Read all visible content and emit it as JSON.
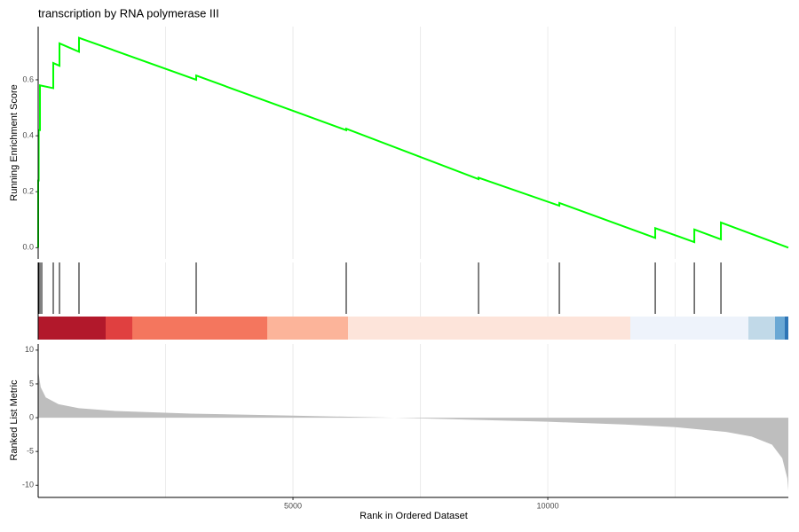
{
  "chart_data": [
    {
      "type": "line",
      "title": "transcription by RNA polymerase III",
      "ylabel": "Running Enrichment Score",
      "x": [
        0,
        0,
        10,
        10,
        35,
        35,
        296,
        296,
        418,
        418,
        801,
        801,
        3101,
        3101,
        6045,
        6045,
        8641,
        8641,
        10226,
        10226,
        12108,
        12108,
        12875,
        12875,
        13397,
        13397,
        14720
      ],
      "values": [
        0,
        0.24,
        0.24,
        0.42,
        0.42,
        0.58,
        0.57,
        0.66,
        0.65,
        0.73,
        0.7,
        0.75,
        0.6,
        0.615,
        0.42,
        0.425,
        0.245,
        0.25,
        0.15,
        0.16,
        0.035,
        0.07,
        0.02,
        0.065,
        0.03,
        0.09,
        0
      ],
      "color": "#00ff00",
      "xlim": [
        0,
        14720
      ],
      "ylim": [
        -0.04,
        0.79
      ],
      "yticks": [
        {
          "value": 0,
          "label": "0.0"
        },
        {
          "value": 0.2,
          "label": "0.2"
        },
        {
          "value": 0.4,
          "label": "0.4"
        },
        {
          "value": 0.6,
          "label": "0.6"
        }
      ],
      "xgrid": [
        2500,
        5000,
        7500,
        10000,
        12500
      ]
    },
    {
      "type": "rug",
      "x": [
        0,
        10,
        35,
        70,
        296,
        418,
        801,
        3101,
        6045,
        8641,
        10226,
        12108,
        12875,
        13397
      ],
      "color": "#000000",
      "xlim": [
        0,
        14720
      ],
      "xgrid": [
        2500,
        5000,
        7500,
        10000,
        12500
      ]
    },
    {
      "type": "area",
      "ylabel": "Ranked List Metric",
      "xlabel": "Rank in Ordered Dataset",
      "x": [
        0,
        50,
        150,
        400,
        800,
        1500,
        3000,
        5000,
        7000,
        8500,
        10000,
        11500,
        12500,
        13500,
        14000,
        14400,
        14600,
        14700,
        14720
      ],
      "values": [
        7,
        4.5,
        3,
        2,
        1.4,
        1.0,
        0.6,
        0.3,
        0,
        -0.3,
        -0.6,
        -1.0,
        -1.4,
        -2.1,
        -2.8,
        -4,
        -6,
        -9,
        -10.8
      ],
      "color": "#bebebe",
      "xlim": [
        0,
        14720
      ],
      "ylim": [
        -11.8,
        10.9
      ],
      "yticks": [
        10,
        5,
        0,
        -5,
        -10
      ],
      "xticks": [
        5000,
        10000
      ],
      "xgrid": [
        2500,
        5000,
        7500,
        10000,
        12500
      ]
    }
  ]
}
